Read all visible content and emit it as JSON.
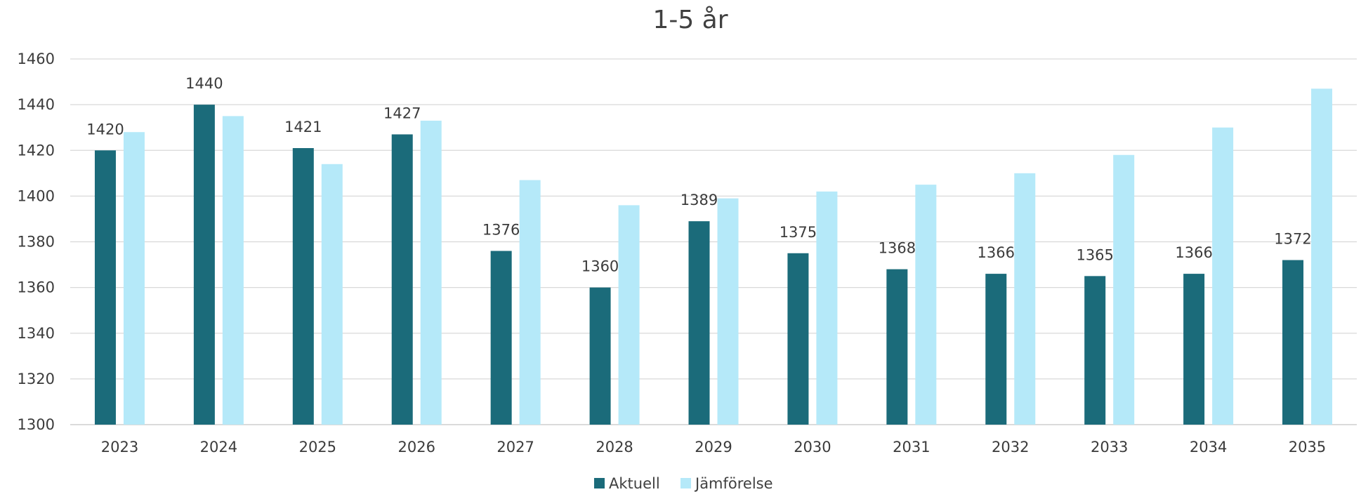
{
  "chart_data": {
    "type": "bar",
    "title": "1-5 år",
    "categories": [
      "2023",
      "2024",
      "2025",
      "2026",
      "2027",
      "2028",
      "2029",
      "2030",
      "2031",
      "2032",
      "2033",
      "2034",
      "2035"
    ],
    "series": [
      {
        "name": "Aktuell",
        "color": "#1b6b7a",
        "values": [
          1420,
          1440,
          1421,
          1427,
          1376,
          1360,
          1389,
          1375,
          1368,
          1366,
          1365,
          1366,
          1372
        ],
        "show_data_labels": true
      },
      {
        "name": "Jämförelse",
        "color": "#b5e9f9",
        "values": [
          1428,
          1435,
          1414,
          1433,
          1407,
          1396,
          1399,
          1402,
          1405,
          1410,
          1418,
          1430,
          1447
        ],
        "show_data_labels": false
      }
    ],
    "ylim": [
      1300,
      1460
    ],
    "yticks": [
      1300,
      1320,
      1340,
      1360,
      1380,
      1400,
      1420,
      1440,
      1460
    ],
    "grid": true,
    "legend_position": "bottom-center"
  }
}
